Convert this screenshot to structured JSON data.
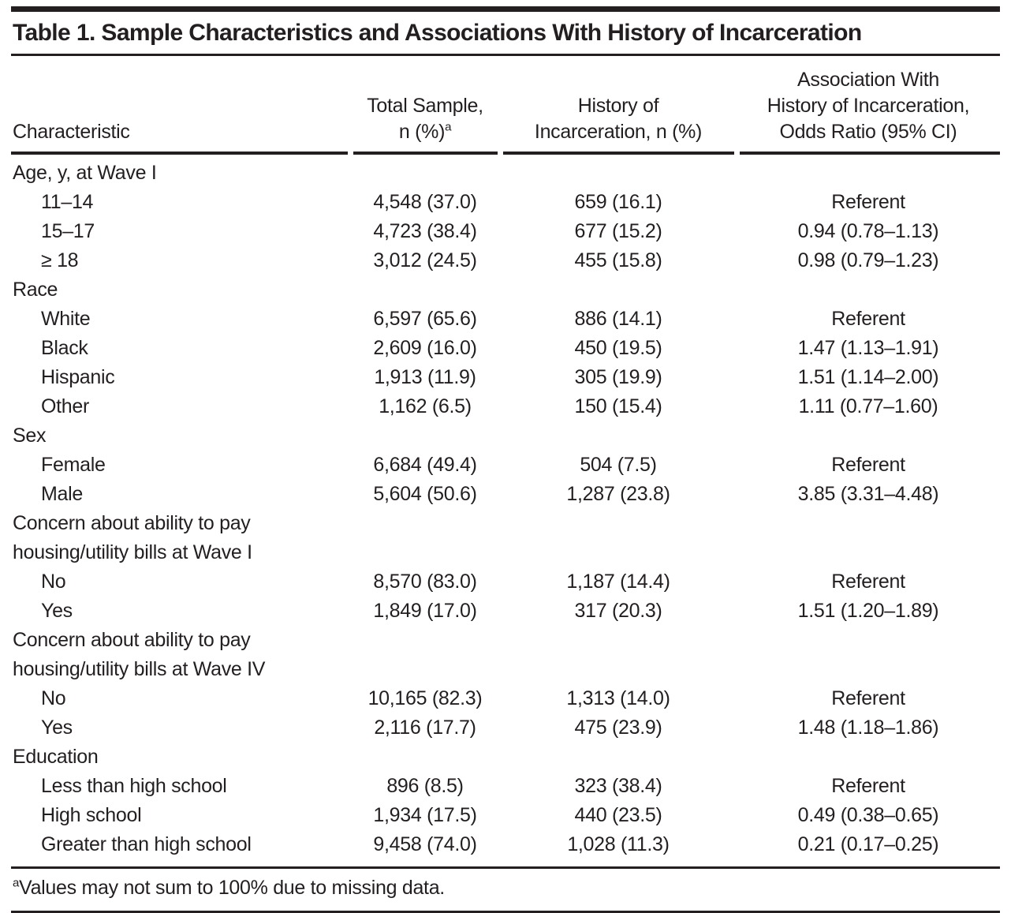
{
  "title": "Table 1. Sample Characteristics and Associations With History of Incarceration",
  "columns": {
    "characteristic": "Characteristic",
    "total_line1": "Total Sample,",
    "total_line2": "n (%)",
    "total_sup": "a",
    "history_line1": "History of",
    "history_line2": "Incarceration, n (%)",
    "assoc_line1": "Association With",
    "assoc_line2": "History of Incarceration,",
    "assoc_line3": "Odds Ratio (95% CI)"
  },
  "table": {
    "rows": [
      {
        "type": "group",
        "label": "Age, y, at Wave I"
      },
      {
        "type": "item",
        "label": "11–14",
        "total": "4,548 (37.0)",
        "history": "659 (16.1)",
        "or": "Referent"
      },
      {
        "type": "item",
        "label": "15–17",
        "total": "4,723 (38.4)",
        "history": "677 (15.2)",
        "or": "0.94 (0.78–1.13)"
      },
      {
        "type": "item",
        "label": "≥ 18",
        "total": "3,012 (24.5)",
        "history": "455 (15.8)",
        "or": "0.98 (0.79–1.23)"
      },
      {
        "type": "group",
        "label": "Race"
      },
      {
        "type": "item",
        "label": "White",
        "total": "6,597 (65.6)",
        "history": "886 (14.1)",
        "or": "Referent"
      },
      {
        "type": "item",
        "label": "Black",
        "total": "2,609 (16.0)",
        "history": "450 (19.5)",
        "or": "1.47 (1.13–1.91)"
      },
      {
        "type": "item",
        "label": "Hispanic",
        "total": "1,913 (11.9)",
        "history": "305 (19.9)",
        "or": "1.51 (1.14–2.00)"
      },
      {
        "type": "item",
        "label": "Other",
        "total": "1,162 (6.5)",
        "history": "150 (15.4)",
        "or": "1.11 (0.77–1.60)"
      },
      {
        "type": "group",
        "label": "Sex"
      },
      {
        "type": "item",
        "label": "Female",
        "total": "6,684 (49.4)",
        "history": "504 (7.5)",
        "or": "Referent"
      },
      {
        "type": "item",
        "label": "Male",
        "total": "5,604 (50.6)",
        "history": "1,287 (23.8)",
        "or": "3.85 (3.31–4.48)"
      },
      {
        "type": "group",
        "label": "Concern about ability to pay housing/utility bills at Wave I"
      },
      {
        "type": "item",
        "label": "No",
        "total": "8,570 (83.0)",
        "history": "1,187 (14.4)",
        "or": "Referent"
      },
      {
        "type": "item",
        "label": "Yes",
        "total": "1,849 (17.0)",
        "history": "317 (20.3)",
        "or": "1.51 (1.20–1.89)"
      },
      {
        "type": "group",
        "label": "Concern about ability to pay housing/utility bills at Wave IV"
      },
      {
        "type": "item",
        "label": "No",
        "total": "10,165 (82.3)",
        "history": "1,313 (14.0)",
        "or": "Referent"
      },
      {
        "type": "item",
        "label": "Yes",
        "total": "2,116 (17.7)",
        "history": "475 (23.9)",
        "or": "1.48 (1.18–1.86)"
      },
      {
        "type": "group",
        "label": "Education"
      },
      {
        "type": "item",
        "label": "Less than high school",
        "total": "896 (8.5)",
        "history": "323 (38.4)",
        "or": "Referent"
      },
      {
        "type": "item",
        "label": "High school",
        "total": "1,934 (17.5)",
        "history": "440 (23.5)",
        "or": "0.49 (0.38–0.65)"
      },
      {
        "type": "item",
        "label": "Greater than high school",
        "total": "9,458 (74.0)",
        "history": "1,028 (11.3)",
        "or": "0.21 (0.17–0.25)"
      }
    ]
  },
  "footnote": {
    "sup": "a",
    "text": "Values may not sum to 100% due to missing data."
  },
  "colors": {
    "text": "#231f20",
    "rule": "#231f20",
    "background": "#ffffff"
  }
}
